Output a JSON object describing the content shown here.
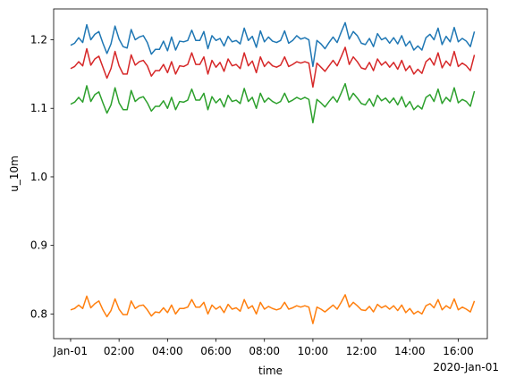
{
  "chart_data": {
    "type": "line",
    "xlabel": "time",
    "ylabel": "u_10m",
    "x_offset_label": "2020-Jan-01",
    "x_start": "2020-01-01T00:00",
    "x_step_minutes": 10,
    "xlim": [
      "2019-12-31T23:18",
      "2020-01-01T17:12"
    ],
    "ylim": [
      0.764,
      1.245
    ],
    "x_ticks": [
      {
        "label": "Jan-01",
        "time": "2020-01-01T00:00"
      },
      {
        "label": "02:00",
        "time": "2020-01-01T02:00"
      },
      {
        "label": "04:00",
        "time": "2020-01-01T04:00"
      },
      {
        "label": "06:00",
        "time": "2020-01-01T06:00"
      },
      {
        "label": "08:00",
        "time": "2020-01-01T08:00"
      },
      {
        "label": "10:00",
        "time": "2020-01-01T10:00"
      },
      {
        "label": "12:00",
        "time": "2020-01-01T12:00"
      },
      {
        "label": "14:00",
        "time": "2020-01-01T14:00"
      },
      {
        "label": "16:00",
        "time": "2020-01-01T16:00"
      }
    ],
    "y_ticks": [
      {
        "label": "0.8",
        "value": 0.8
      },
      {
        "label": "0.9",
        "value": 0.9
      },
      {
        "label": "1.0",
        "value": 1.0
      },
      {
        "label": "1.1",
        "value": 1.1
      },
      {
        "label": "1.2",
        "value": 1.2
      }
    ],
    "grid": false,
    "legend": "none",
    "series": [
      {
        "color": "#1f77b4",
        "values": [
          1.192,
          1.195,
          1.203,
          1.196,
          1.222,
          1.2,
          1.208,
          1.212,
          1.195,
          1.18,
          1.194,
          1.22,
          1.201,
          1.19,
          1.188,
          1.215,
          1.2,
          1.204,
          1.206,
          1.196,
          1.179,
          1.186,
          1.186,
          1.198,
          1.184,
          1.204,
          1.185,
          1.198,
          1.197,
          1.199,
          1.214,
          1.199,
          1.199,
          1.212,
          1.187,
          1.206,
          1.199,
          1.202,
          1.191,
          1.205,
          1.197,
          1.199,
          1.194,
          1.217,
          1.199,
          1.205,
          1.189,
          1.213,
          1.197,
          1.204,
          1.198,
          1.196,
          1.199,
          1.213,
          1.195,
          1.199,
          1.206,
          1.201,
          1.203,
          1.2,
          1.161,
          1.199,
          1.194,
          1.187,
          1.196,
          1.204,
          1.196,
          1.211,
          1.225,
          1.201,
          1.212,
          1.206,
          1.195,
          1.193,
          1.202,
          1.19,
          1.209,
          1.2,
          1.203,
          1.195,
          1.203,
          1.194,
          1.206,
          1.191,
          1.198,
          1.185,
          1.191,
          1.185,
          1.203,
          1.208,
          1.2,
          1.217,
          1.193,
          1.205,
          1.197,
          1.218,
          1.197,
          1.202,
          1.198,
          1.19,
          1.212
        ]
      },
      {
        "color": "#ff7f0e",
        "values": [
          0.806,
          0.808,
          0.813,
          0.808,
          0.826,
          0.809,
          0.815,
          0.819,
          0.806,
          0.796,
          0.805,
          0.822,
          0.807,
          0.799,
          0.799,
          0.819,
          0.808,
          0.812,
          0.813,
          0.806,
          0.797,
          0.803,
          0.802,
          0.809,
          0.802,
          0.813,
          0.8,
          0.808,
          0.808,
          0.81,
          0.821,
          0.81,
          0.81,
          0.817,
          0.8,
          0.813,
          0.807,
          0.811,
          0.802,
          0.814,
          0.807,
          0.809,
          0.804,
          0.821,
          0.808,
          0.812,
          0.8,
          0.817,
          0.807,
          0.811,
          0.808,
          0.806,
          0.808,
          0.817,
          0.807,
          0.809,
          0.812,
          0.81,
          0.812,
          0.81,
          0.786,
          0.81,
          0.807,
          0.803,
          0.808,
          0.813,
          0.807,
          0.817,
          0.828,
          0.81,
          0.817,
          0.812,
          0.806,
          0.805,
          0.811,
          0.803,
          0.814,
          0.809,
          0.812,
          0.807,
          0.812,
          0.805,
          0.813,
          0.802,
          0.808,
          0.8,
          0.804,
          0.8,
          0.812,
          0.815,
          0.809,
          0.821,
          0.806,
          0.812,
          0.808,
          0.822,
          0.806,
          0.81,
          0.807,
          0.803,
          0.819
        ]
      },
      {
        "color": "#2ca02c",
        "values": [
          1.106,
          1.109,
          1.116,
          1.109,
          1.133,
          1.11,
          1.12,
          1.124,
          1.108,
          1.093,
          1.105,
          1.13,
          1.108,
          1.098,
          1.098,
          1.126,
          1.11,
          1.115,
          1.117,
          1.108,
          1.096,
          1.103,
          1.103,
          1.111,
          1.1,
          1.116,
          1.098,
          1.11,
          1.109,
          1.112,
          1.128,
          1.112,
          1.112,
          1.122,
          1.098,
          1.117,
          1.108,
          1.114,
          1.102,
          1.119,
          1.11,
          1.112,
          1.107,
          1.129,
          1.11,
          1.116,
          1.1,
          1.122,
          1.109,
          1.115,
          1.11,
          1.107,
          1.11,
          1.122,
          1.109,
          1.112,
          1.116,
          1.113,
          1.116,
          1.113,
          1.079,
          1.113,
          1.108,
          1.102,
          1.11,
          1.117,
          1.109,
          1.122,
          1.136,
          1.112,
          1.122,
          1.115,
          1.107,
          1.105,
          1.114,
          1.103,
          1.119,
          1.111,
          1.115,
          1.108,
          1.115,
          1.105,
          1.117,
          1.102,
          1.11,
          1.098,
          1.104,
          1.099,
          1.116,
          1.12,
          1.11,
          1.128,
          1.107,
          1.116,
          1.11,
          1.13,
          1.108,
          1.113,
          1.11,
          1.103,
          1.125
        ]
      },
      {
        "color": "#d62728",
        "values": [
          1.158,
          1.161,
          1.168,
          1.162,
          1.187,
          1.163,
          1.172,
          1.176,
          1.16,
          1.144,
          1.158,
          1.183,
          1.162,
          1.15,
          1.15,
          1.178,
          1.163,
          1.168,
          1.17,
          1.162,
          1.147,
          1.155,
          1.155,
          1.164,
          1.152,
          1.168,
          1.15,
          1.162,
          1.161,
          1.164,
          1.181,
          1.164,
          1.164,
          1.175,
          1.15,
          1.17,
          1.16,
          1.167,
          1.154,
          1.172,
          1.162,
          1.164,
          1.158,
          1.181,
          1.162,
          1.169,
          1.152,
          1.175,
          1.161,
          1.168,
          1.162,
          1.16,
          1.163,
          1.175,
          1.161,
          1.164,
          1.168,
          1.166,
          1.168,
          1.166,
          1.131,
          1.166,
          1.16,
          1.154,
          1.162,
          1.17,
          1.162,
          1.175,
          1.189,
          1.164,
          1.175,
          1.168,
          1.159,
          1.157,
          1.167,
          1.155,
          1.172,
          1.163,
          1.168,
          1.16,
          1.167,
          1.157,
          1.17,
          1.155,
          1.162,
          1.15,
          1.157,
          1.151,
          1.168,
          1.173,
          1.163,
          1.181,
          1.159,
          1.169,
          1.162,
          1.183,
          1.161,
          1.166,
          1.162,
          1.155,
          1.178
        ]
      }
    ]
  }
}
